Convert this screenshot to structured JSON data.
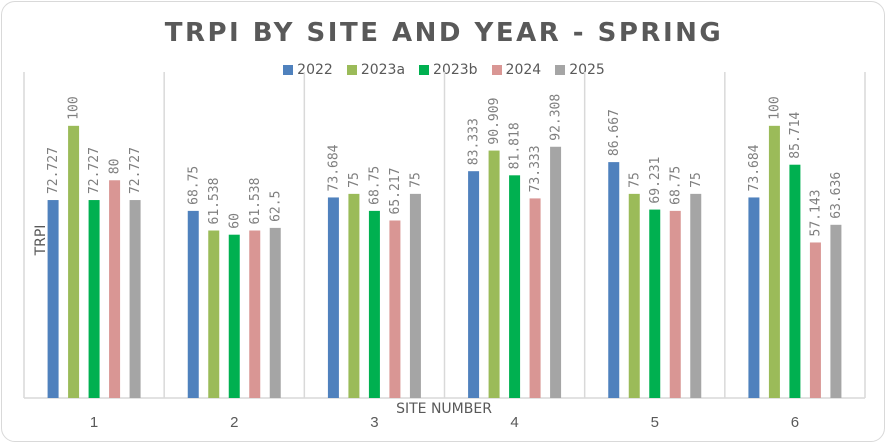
{
  "chart_data": {
    "type": "bar",
    "title": "TRPI BY SITE AND YEAR - SPRING",
    "xlabel": "SITE NUMBER",
    "ylabel": "TRPI",
    "ylim": [
      0,
      115
    ],
    "grid": "vertical category separators",
    "legend_position": "top",
    "categories": [
      "1",
      "2",
      "3",
      "4",
      "5",
      "6"
    ],
    "series": [
      {
        "name": "2022",
        "color": "#4F81BD",
        "values": [
          72.727,
          68.75,
          73.684,
          83.333,
          86.667,
          73.684
        ],
        "labels": [
          "72.727",
          "68.75",
          "73.684",
          "83.333",
          "86.667",
          "73.684"
        ]
      },
      {
        "name": "2023a",
        "color": "#9BBB59",
        "values": [
          100,
          61.538,
          75,
          90.909,
          75,
          100
        ],
        "labels": [
          "100",
          "61.538",
          "75",
          "90.909",
          "75",
          "100"
        ]
      },
      {
        "name": "2023b",
        "color": "#00B050",
        "values": [
          72.727,
          60,
          68.75,
          81.818,
          69.231,
          85.714
        ],
        "labels": [
          "72.727",
          "60",
          "68.75",
          "81.818",
          "69.231",
          "85.714"
        ]
      },
      {
        "name": "2024",
        "color": "#D99694",
        "values": [
          80,
          61.538,
          65.217,
          73.333,
          68.75,
          57.143
        ],
        "labels": [
          "80",
          "61.538",
          "65.217",
          "73.333",
          "68.75",
          "57.143"
        ]
      },
      {
        "name": "2025",
        "color": "#A5A5A5",
        "values": [
          72.727,
          62.5,
          75,
          92.308,
          75,
          63.636
        ],
        "labels": [
          "72.727",
          "62.5",
          "75",
          "92.308",
          "75",
          "63.636"
        ]
      }
    ]
  }
}
